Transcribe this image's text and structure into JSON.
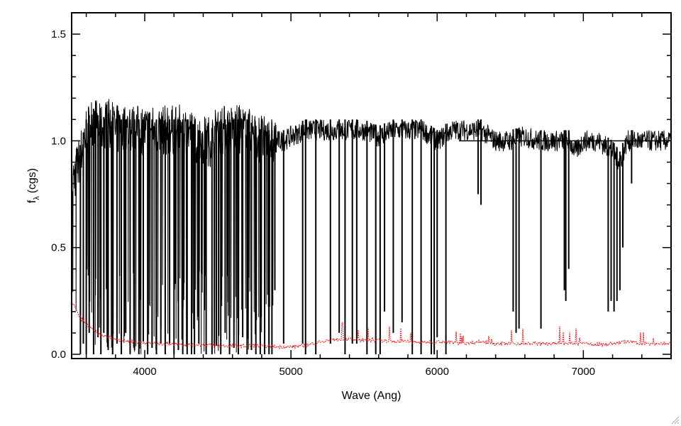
{
  "chart_data": {
    "type": "line",
    "title": "",
    "xlabel": "Wave (Ang)",
    "ylabel_main": "f",
    "ylabel_sub": "λ",
    "ylabel_unit": "(cgs)",
    "xlim": [
      3500,
      7600
    ],
    "ylim": [
      -0.02,
      1.6
    ],
    "xticks": [
      4000,
      5000,
      6000,
      7000
    ],
    "xtick_labels": [
      "4000",
      "5000",
      "6000",
      "7000"
    ],
    "yticks": [
      0.0,
      0.5,
      1.0,
      1.5
    ],
    "ytick_labels": [
      "0.0",
      "0.5",
      "1.0",
      "1.5"
    ],
    "grid": false,
    "reference_line": 1.0,
    "series": [
      {
        "role": "flux",
        "color": "#000000",
        "style": "solid",
        "x": [
          3500,
          3550,
          3600,
          3650,
          3700,
          3750,
          3800,
          3900,
          4000,
          4100,
          4200,
          4300,
          4350,
          4400,
          4450,
          4500,
          4600,
          4700,
          4800,
          4850,
          4900,
          4950,
          5000,
          5100,
          5200,
          5300,
          5400,
          5500,
          5600,
          5700,
          5800,
          5900,
          6000,
          6100,
          6200,
          6300,
          6400,
          6500,
          6600,
          6700,
          6800,
          6900,
          6950,
          7000,
          7100,
          7200,
          7250,
          7300,
          7400,
          7500,
          7600
        ],
        "y": [
          0.8,
          0.9,
          1.05,
          1.1,
          1.05,
          1.08,
          1.05,
          1.05,
          1.05,
          1.05,
          1.05,
          1.05,
          1.0,
          1.0,
          1.0,
          1.05,
          1.05,
          1.05,
          1.0,
          1.0,
          1.0,
          1.0,
          1.02,
          1.05,
          1.05,
          1.05,
          1.05,
          1.05,
          1.02,
          1.05,
          1.05,
          1.05,
          1.0,
          1.05,
          1.05,
          1.05,
          1.0,
          1.0,
          1.02,
          1.0,
          1.0,
          1.0,
          0.95,
          1.0,
          1.0,
          0.95,
          0.9,
          1.0,
          1.0,
          1.0,
          1.0
        ],
        "absorption_lines": [
          {
            "x": 3560,
            "depth": 0.0
          },
          {
            "x": 3580,
            "depth": 0.05
          },
          {
            "x": 3600,
            "depth": 0.0
          },
          {
            "x": 3620,
            "depth": 0.1
          },
          {
            "x": 3650,
            "depth": 0.0
          },
          {
            "x": 3680,
            "depth": 0.08
          },
          {
            "x": 3700,
            "depth": 0.0
          },
          {
            "x": 3720,
            "depth": 0.1
          },
          {
            "x": 3750,
            "depth": 0.02
          },
          {
            "x": 3780,
            "depth": 0.0
          },
          {
            "x": 3810,
            "depth": 0.05
          },
          {
            "x": 3840,
            "depth": 0.0
          },
          {
            "x": 3870,
            "depth": 0.1
          },
          {
            "x": 3900,
            "depth": 0.0
          },
          {
            "x": 3930,
            "depth": 0.02
          },
          {
            "x": 3960,
            "depth": 0.0
          },
          {
            "x": 3990,
            "depth": 0.06
          },
          {
            "x": 4020,
            "depth": 0.0
          },
          {
            "x": 4050,
            "depth": 0.03
          },
          {
            "x": 4080,
            "depth": 0.0
          },
          {
            "x": 4110,
            "depth": 0.05
          },
          {
            "x": 4140,
            "depth": 0.0
          },
          {
            "x": 4170,
            "depth": 0.05
          },
          {
            "x": 4200,
            "depth": 0.0
          },
          {
            "x": 4230,
            "depth": 0.02
          },
          {
            "x": 4260,
            "depth": 0.0
          },
          {
            "x": 4290,
            "depth": 0.0
          },
          {
            "x": 4320,
            "depth": 0.0
          },
          {
            "x": 4340,
            "depth": 0.0
          },
          {
            "x": 4370,
            "depth": 0.05
          },
          {
            "x": 4420,
            "depth": 0.0
          },
          {
            "x": 4460,
            "depth": 0.0
          },
          {
            "x": 4490,
            "depth": 0.04
          },
          {
            "x": 4520,
            "depth": 0.0
          },
          {
            "x": 4550,
            "depth": 0.1
          },
          {
            "x": 4580,
            "depth": 0.0
          },
          {
            "x": 4610,
            "depth": 0.03
          },
          {
            "x": 4640,
            "depth": 0.0
          },
          {
            "x": 4670,
            "depth": 0.08
          },
          {
            "x": 4700,
            "depth": 0.0
          },
          {
            "x": 4730,
            "depth": 0.02
          },
          {
            "x": 4760,
            "depth": 0.0
          },
          {
            "x": 4790,
            "depth": 0.0
          },
          {
            "x": 4820,
            "depth": 0.0
          },
          {
            "x": 4850,
            "depth": 0.0
          },
          {
            "x": 4870,
            "depth": 0.0
          },
          {
            "x": 4890,
            "depth": 0.3
          },
          {
            "x": 4950,
            "depth": 0.05
          },
          {
            "x": 5080,
            "depth": 0.05
          },
          {
            "x": 5100,
            "depth": 0.0
          },
          {
            "x": 5170,
            "depth": 0.0
          },
          {
            "x": 5270,
            "depth": 0.05
          },
          {
            "x": 5330,
            "depth": 0.1
          },
          {
            "x": 5370,
            "depth": 0.0
          },
          {
            "x": 5420,
            "depth": 0.05
          },
          {
            "x": 5450,
            "depth": 0.05
          },
          {
            "x": 5520,
            "depth": 0.0
          },
          {
            "x": 5580,
            "depth": 0.0
          },
          {
            "x": 5610,
            "depth": 0.0
          },
          {
            "x": 5640,
            "depth": 0.2
          },
          {
            "x": 5700,
            "depth": 0.1
          },
          {
            "x": 5760,
            "depth": 0.15
          },
          {
            "x": 5830,
            "depth": 0.0
          },
          {
            "x": 5890,
            "depth": 0.0
          },
          {
            "x": 5960,
            "depth": 0.0
          },
          {
            "x": 5980,
            "depth": 0.0
          },
          {
            "x": 6000,
            "depth": 0.08
          },
          {
            "x": 6060,
            "depth": 0.0
          },
          {
            "x": 6280,
            "depth": 0.75
          },
          {
            "x": 6300,
            "depth": 0.7
          },
          {
            "x": 6520,
            "depth": 0.2
          },
          {
            "x": 6540,
            "depth": 0.1
          },
          {
            "x": 6560,
            "depth": 0.12
          },
          {
            "x": 6710,
            "depth": 0.12
          },
          {
            "x": 6870,
            "depth": 0.3
          },
          {
            "x": 6880,
            "depth": 0.25
          },
          {
            "x": 6900,
            "depth": 0.4
          },
          {
            "x": 7170,
            "depth": 0.2
          },
          {
            "x": 7190,
            "depth": 0.25
          },
          {
            "x": 7210,
            "depth": 0.2
          },
          {
            "x": 7230,
            "depth": 0.25
          },
          {
            "x": 7250,
            "depth": 0.3
          },
          {
            "x": 7270,
            "depth": 0.5
          },
          {
            "x": 7330,
            "depth": 0.8
          }
        ]
      },
      {
        "role": "error",
        "color": "#ff0000",
        "style": "dotted",
        "x": [
          3500,
          3550,
          3600,
          3650,
          3700,
          3750,
          3800,
          3900,
          4000,
          4100,
          4200,
          4300,
          4400,
          4500,
          4600,
          4700,
          4800,
          4900,
          5000,
          5100,
          5200,
          5300,
          5400,
          5500,
          5600,
          5700,
          5800,
          5900,
          6000,
          6100,
          6200,
          6300,
          6400,
          6500,
          6600,
          6700,
          6800,
          6900,
          7000,
          7100,
          7200,
          7300,
          7400,
          7500,
          7600
        ],
        "y": [
          0.25,
          0.18,
          0.14,
          0.11,
          0.09,
          0.08,
          0.07,
          0.06,
          0.055,
          0.05,
          0.05,
          0.045,
          0.045,
          0.04,
          0.04,
          0.04,
          0.04,
          0.035,
          0.035,
          0.04,
          0.06,
          0.07,
          0.07,
          0.065,
          0.065,
          0.06,
          0.06,
          0.055,
          0.06,
          0.055,
          0.05,
          0.06,
          0.05,
          0.05,
          0.05,
          0.05,
          0.05,
          0.05,
          0.05,
          0.045,
          0.05,
          0.06,
          0.05,
          0.05,
          0.05
        ]
      }
    ]
  }
}
